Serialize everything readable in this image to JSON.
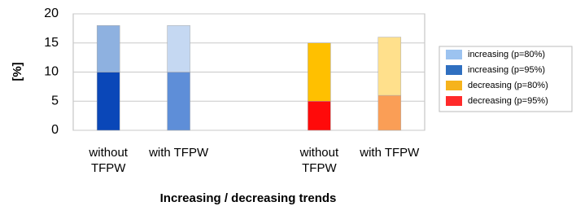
{
  "chart_data": {
    "type": "stacked-bar",
    "y_label": "[%]",
    "x_label": "Increasing / decreasing trends",
    "categories": [
      "without TFPW",
      "with TFPW",
      null,
      "without TFPW",
      "with TFPW"
    ],
    "series": [
      {
        "name": "increasing (p=80%)",
        "color": "#9cc3f0",
        "values": [
          8,
          8,
          null,
          null,
          null
        ],
        "colors": [
          "#8eb1e0",
          "#c5d8f2",
          null,
          null,
          null
        ]
      },
      {
        "name": "increasing (p=95%)",
        "color": "#2f6fc0",
        "values": [
          10,
          10,
          null,
          null,
          null
        ],
        "colors": [
          "#0a47b8",
          "#5e8ed8",
          null,
          null,
          null
        ]
      },
      {
        "name": "decreasing (p=80%)",
        "color": "#f6b31c",
        "values": [
          null,
          null,
          null,
          10,
          10
        ],
        "colors": [
          null,
          null,
          null,
          "#ffc000",
          "#ffe08c"
        ]
      },
      {
        "name": "decreasing (p=95%)",
        "color": "#ff2a2a",
        "values": [
          null,
          null,
          null,
          5,
          6
        ],
        "colors": [
          null,
          null,
          null,
          "#ff0a0a",
          "#fa9e56"
        ]
      }
    ],
    "ylim": [
      0,
      20
    ],
    "yticks": [
      0,
      5,
      10,
      15,
      20
    ],
    "grid": true,
    "legend": "right"
  }
}
